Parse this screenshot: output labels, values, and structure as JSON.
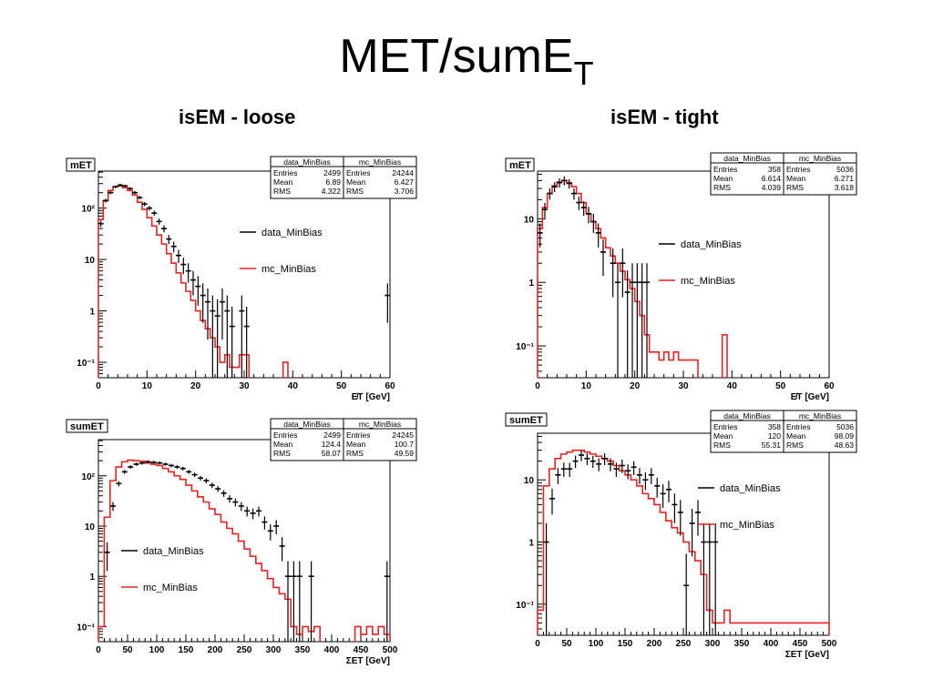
{
  "page": {
    "title_main": "MET/sumE",
    "title_sub": "T",
    "col_left": "isEM - loose",
    "col_right": "isEM - tight"
  },
  "colors": {
    "data": "#000000",
    "mc": "#ee2020",
    "frame": "#000000",
    "grid": "#000000"
  },
  "chart_data": [
    {
      "type": "histogram",
      "panel_label": "mET",
      "xlabel": "E̸T [GeV]",
      "xlim": [
        0,
        60
      ],
      "xticks": [
        "0",
        "10",
        "20",
        "30",
        "40",
        "50",
        "60"
      ],
      "ylim_log10": [
        -1.3,
        2.72
      ],
      "yticks": [
        {
          "v": -1,
          "label": "10⁻¹"
        },
        {
          "v": 0,
          "label": "1"
        },
        {
          "v": 1,
          "label": "10"
        },
        {
          "v": 2,
          "label": "10²"
        }
      ],
      "log_y": true,
      "stats": [
        {
          "name": "data_MinBias",
          "rows": [
            [
              "Entries",
              "2499"
            ],
            [
              "Mean",
              "6.89"
            ],
            [
              "RMS",
              "4.322"
            ]
          ]
        },
        {
          "name": "mc_MinBias",
          "rows": [
            [
              "Entries",
              "24244"
            ],
            [
              "Mean",
              "6.427"
            ],
            [
              "RMS",
              "3.706"
            ]
          ]
        }
      ],
      "legend": [
        {
          "label": "data_MinBias",
          "series": "data"
        },
        {
          "label": "mc_MinBias",
          "series": "mc"
        }
      ],
      "mc": {
        "x": [
          0,
          1,
          2,
          3,
          4,
          5,
          6,
          7,
          8,
          9,
          10,
          11,
          12,
          13,
          14,
          15,
          16,
          17,
          18,
          19,
          20,
          21,
          22,
          23,
          24,
          25,
          26,
          27,
          28,
          29,
          30,
          31,
          32,
          33,
          34,
          35,
          36,
          37,
          38,
          39,
          40,
          41,
          42,
          43,
          44,
          45,
          46,
          47,
          48,
          49,
          50,
          51,
          52,
          53,
          54,
          55,
          56,
          57,
          58,
          59,
          60
        ],
        "y": [
          60,
          140,
          220,
          260,
          270,
          250,
          220,
          180,
          130,
          95,
          65,
          45,
          30,
          20,
          13,
          8.5,
          5.5,
          3.5,
          2.4,
          1.6,
          1.0,
          0.65,
          0.45,
          0.3,
          0.2,
          0.1,
          0.14,
          0.08,
          0.08,
          0.14,
          0.14,
          null,
          null,
          null,
          null,
          null,
          null,
          null,
          0.1,
          null,
          null,
          null,
          null,
          null,
          null,
          null,
          null,
          null,
          null,
          null,
          null,
          null,
          null,
          null,
          null,
          null,
          null,
          null,
          null,
          null
        ]
      },
      "data": {
        "x": [
          0.5,
          1.5,
          2.5,
          3.5,
          4.5,
          5.5,
          6.5,
          7.5,
          8.5,
          9.5,
          10.5,
          11.5,
          12.5,
          13.5,
          14.5,
          15.5,
          16.5,
          17.5,
          18.5,
          19.5,
          20.5,
          21.5,
          22.5,
          23.5,
          24.5,
          25.5,
          26.5,
          27.5,
          29.5,
          30.5,
          59.5
        ],
        "y": [
          50,
          140,
          200,
          260,
          280,
          270,
          240,
          200,
          160,
          120,
          100,
          80,
          55,
          40,
          25,
          18,
          12,
          8,
          6,
          4,
          3,
          2,
          1.5,
          1,
          0.8,
          1.5,
          1,
          0.5,
          1,
          0.5,
          2
        ]
      }
    },
    {
      "type": "histogram",
      "panel_label": "mET",
      "xlabel": "E̸T [GeV]",
      "xlim": [
        0,
        60
      ],
      "xticks": [
        "0",
        "10",
        "20",
        "30",
        "40",
        "50",
        "60"
      ],
      "ylim_log10": [
        -1.5,
        1.75
      ],
      "yticks": [
        {
          "v": -1,
          "label": "10⁻¹"
        },
        {
          "v": 0,
          "label": "1"
        },
        {
          "v": 1,
          "label": "10"
        }
      ],
      "log_y": true,
      "stats": [
        {
          "name": "data_MinBias",
          "rows": [
            [
              "Entries",
              "358"
            ],
            [
              "Mean",
              "6.614"
            ],
            [
              "RMS",
              "4.039"
            ]
          ]
        },
        {
          "name": "mc_MinBias",
          "rows": [
            [
              "Entries",
              "5036"
            ],
            [
              "Mean",
              "6.271"
            ],
            [
              "RMS",
              "3.618"
            ]
          ]
        }
      ],
      "legend": [
        {
          "label": "data_MinBias",
          "series": "data"
        },
        {
          "label": "mc_MinBias",
          "series": "mc"
        }
      ],
      "mc": {
        "x": [
          0,
          1,
          2,
          3,
          4,
          5,
          6,
          7,
          8,
          9,
          10,
          11,
          12,
          13,
          14,
          15,
          16,
          17,
          18,
          19,
          20,
          21,
          22,
          23,
          24,
          25,
          26,
          27,
          28,
          29,
          30,
          31,
          32,
          33,
          34,
          35,
          36,
          37,
          38,
          39,
          40,
          41,
          42,
          43,
          44,
          45,
          46,
          47,
          48,
          49,
          50,
          51,
          52,
          53,
          54,
          55,
          56,
          57,
          58,
          59,
          60
        ],
        "y": [
          7,
          15,
          25,
          33,
          38,
          40,
          37,
          32,
          25,
          18,
          12,
          9,
          7,
          5,
          3.5,
          2.6,
          2.0,
          1.5,
          1.1,
          0.8,
          0.5,
          0.3,
          0.15,
          0.08,
          0.08,
          0.06,
          0.08,
          0.06,
          0.08,
          0.06,
          0.06,
          0.06,
          0.06,
          null,
          null,
          null,
          null,
          null,
          0.15,
          null,
          null,
          null,
          null,
          null,
          null,
          null,
          null,
          null,
          null,
          null,
          null,
          null,
          null,
          null,
          null,
          null,
          null,
          null,
          null,
          null
        ]
      },
      "data": {
        "x": [
          0.5,
          1.5,
          2.5,
          3.5,
          4.5,
          5.5,
          6.5,
          7.5,
          8.5,
          9.5,
          10.5,
          11.5,
          12.5,
          13.5,
          15.5,
          16.5,
          17.5,
          18.5,
          19.5,
          20.5,
          21.5,
          22.5
        ],
        "y": [
          6,
          14,
          25,
          32,
          37,
          40,
          36,
          25,
          18,
          15,
          12,
          9,
          6,
          3,
          2,
          1,
          2,
          0.7,
          1,
          1,
          1,
          1
        ]
      }
    },
    {
      "type": "histogram",
      "panel_label": "sumET",
      "xlabel": "ΣET [GeV]",
      "xlim": [
        0,
        500
      ],
      "xticks": [
        "0",
        "50",
        "100",
        "150",
        "200",
        "250",
        "300",
        "350",
        "400",
        "450",
        "500"
      ],
      "ylim_log10": [
        -1.3,
        2.72
      ],
      "yticks": [
        {
          "v": -1,
          "label": "10⁻¹"
        },
        {
          "v": 0,
          "label": "1"
        },
        {
          "v": 1,
          "label": "10"
        },
        {
          "v": 2,
          "label": "10²"
        }
      ],
      "log_y": true,
      "stats": [
        {
          "name": "data_MinBias",
          "rows": [
            [
              "Entries",
              "2499"
            ],
            [
              "Mean",
              "124.4"
            ],
            [
              "RMS",
              "58.07"
            ]
          ]
        },
        {
          "name": "mc_MinBias",
          "rows": [
            [
              "Entries",
              "24245"
            ],
            [
              "Mean",
              "100.7"
            ],
            [
              "RMS",
              "49.59"
            ]
          ]
        }
      ],
      "legend": [
        {
          "label": "data_MinBias",
          "series": "data"
        },
        {
          "label": "mc_MinBias",
          "series": "mc"
        }
      ],
      "mc": {
        "x": [
          0,
          10,
          20,
          30,
          40,
          50,
          60,
          70,
          80,
          90,
          100,
          110,
          120,
          130,
          140,
          150,
          160,
          170,
          180,
          190,
          200,
          210,
          220,
          230,
          240,
          250,
          260,
          270,
          280,
          290,
          300,
          310,
          320,
          330,
          340,
          350,
          360,
          370,
          380,
          390,
          400,
          410,
          420,
          430,
          440,
          450,
          460,
          470,
          480,
          490,
          500
        ],
        "y": [
          0.1,
          15,
          80,
          150,
          190,
          205,
          200,
          195,
          180,
          170,
          160,
          140,
          120,
          100,
          85,
          65,
          50,
          38,
          30,
          22,
          17,
          12,
          9,
          7,
          5,
          3.5,
          2.5,
          1.8,
          1.3,
          0.9,
          0.6,
          0.45,
          0.35,
          0.1,
          0.07,
          0.1,
          0.08,
          0.1,
          null,
          null,
          null,
          null,
          null,
          null,
          0.1,
          0.07,
          0.1,
          0.07,
          0.1,
          0.07,
          0.2
        ]
      },
      "data": {
        "x": [
          15,
          25,
          35,
          45,
          55,
          65,
          75,
          85,
          95,
          105,
          115,
          125,
          135,
          145,
          155,
          165,
          175,
          185,
          195,
          205,
          215,
          225,
          235,
          245,
          255,
          265,
          275,
          285,
          295,
          305,
          315,
          325,
          335,
          345,
          365,
          495
        ],
        "y": [
          3,
          25,
          70,
          120,
          150,
          170,
          180,
          190,
          185,
          180,
          170,
          160,
          150,
          140,
          120,
          105,
          90,
          80,
          65,
          55,
          45,
          35,
          30,
          25,
          20,
          18,
          20,
          12,
          8,
          10,
          4,
          1,
          1,
          1,
          1,
          1
        ]
      }
    },
    {
      "type": "histogram",
      "panel_label": "sumET",
      "xlabel": "ΣET [GeV]",
      "xlim": [
        0,
        500
      ],
      "xticks": [
        "0",
        "50",
        "100",
        "150",
        "200",
        "250",
        "300",
        "350",
        "400",
        "450",
        "500"
      ],
      "ylim_log10": [
        -1.5,
        1.75
      ],
      "yticks": [
        {
          "v": -1,
          "label": "10⁻¹"
        },
        {
          "v": 0,
          "label": "1"
        },
        {
          "v": 1,
          "label": "10"
        }
      ],
      "log_y": true,
      "stats": [
        {
          "name": "data_MinBias",
          "rows": [
            [
              "Entries",
              "358"
            ],
            [
              "Mean",
              "120"
            ],
            [
              "RMS",
              "55.31"
            ]
          ]
        },
        {
          "name": "mc_MinBias",
          "rows": [
            [
              "Entries",
              "5036"
            ],
            [
              "Mean",
              "98.09"
            ],
            [
              "RMS",
              "48.63"
            ]
          ]
        }
      ],
      "legend": [
        {
          "label": "data_MinBias",
          "series": "data"
        },
        {
          "label": "mc_MinBias",
          "series": "mc"
        }
      ],
      "mc": {
        "x": [
          0,
          10,
          20,
          30,
          40,
          50,
          60,
          70,
          80,
          90,
          100,
          110,
          120,
          130,
          140,
          150,
          160,
          170,
          180,
          190,
          200,
          210,
          220,
          230,
          240,
          250,
          260,
          270,
          280,
          290,
          300,
          310,
          320,
          330,
          340,
          350,
          360,
          370,
          380,
          390,
          400,
          410,
          420,
          430,
          440,
          450,
          460,
          470,
          480,
          490,
          500
        ],
        "y": [
          0.08,
          8,
          15,
          22,
          26,
          28,
          30,
          30,
          28,
          26,
          24,
          22,
          20,
          17,
          14,
          12,
          10,
          8,
          6,
          5,
          4,
          3,
          2.2,
          1.7,
          1.4,
          1.0,
          0.7,
          0.5,
          0.3,
          0.08,
          0.05,
          0.05,
          0.08,
          0.05,
          0.05,
          0.05,
          0.05,
          0.05,
          0.05,
          0.05,
          0.05,
          0.05,
          0.05,
          0.05,
          0.05,
          0.05,
          0.05,
          0.05,
          0.05,
          0.05,
          0.05
        ]
      },
      "data": {
        "x": [
          15,
          25,
          35,
          45,
          55,
          65,
          75,
          85,
          95,
          105,
          115,
          125,
          135,
          145,
          155,
          165,
          175,
          185,
          195,
          205,
          215,
          225,
          235,
          245,
          255,
          265,
          275,
          285,
          295,
          305
        ],
        "y": [
          1,
          5,
          12,
          15,
          15,
          20,
          25,
          22,
          20,
          18,
          22,
          18,
          15,
          17,
          14,
          16,
          12,
          10,
          12,
          8,
          6,
          7,
          4,
          3,
          0.2,
          2,
          3,
          1,
          1,
          1
        ]
      }
    }
  ]
}
